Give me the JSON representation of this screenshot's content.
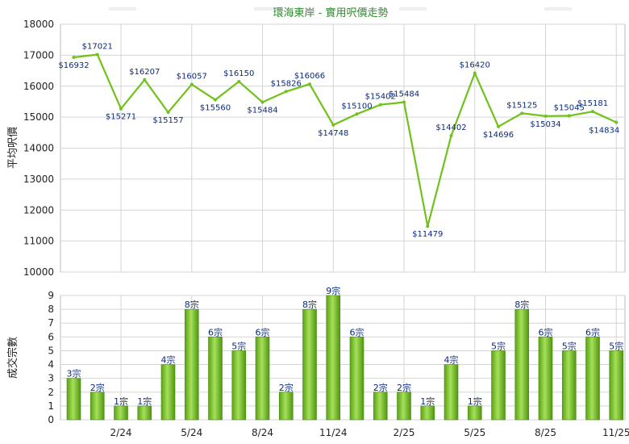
{
  "chart_data": [
    {
      "type": "line",
      "title": "環海東岸 - 實用呎價走勢",
      "ylabel": "平均呎價",
      "ylim": [
        10000,
        18000
      ],
      "yticks": [
        10000,
        11000,
        12000,
        13000,
        14000,
        15000,
        16000,
        17000,
        18000
      ],
      "grid": true,
      "series": [
        {
          "color": "#6fc21a",
          "values": [
            16932,
            17021,
            15271,
            16207,
            15157,
            16057,
            15560,
            16150,
            15484,
            15826,
            16066,
            14748,
            15100,
            15402,
            15484,
            11479,
            14402,
            16420,
            14696,
            15125,
            15034,
            15045,
            15181,
            14834
          ],
          "labels": [
            "$16932",
            "$17021",
            "$15271",
            "$16207",
            "$15157",
            "$16057",
            "$15560",
            "$16150",
            "$15484",
            "$15826",
            "$16066",
            "$14748",
            "$15100",
            "$15402",
            "$15484",
            "$11479",
            "$14402",
            "$16420",
            "$14696",
            "$15125",
            "$15034",
            "$15045",
            "$15181",
            "$14834"
          ]
        }
      ]
    },
    {
      "type": "bar",
      "ylabel": "成交宗數",
      "ylim": [
        0,
        9
      ],
      "yticks": [
        0,
        1,
        2,
        3,
        4,
        5,
        6,
        7,
        8,
        9
      ],
      "x_tick_labels": [
        "2/24",
        "5/24",
        "8/24",
        "11/24",
        "2/25",
        "5/25",
        "8/25",
        "11/25"
      ],
      "grid": true,
      "bar_color": "#7cc428",
      "values": [
        3,
        2,
        1,
        1,
        4,
        8,
        6,
        5,
        6,
        2,
        8,
        9,
        6,
        2,
        2,
        1,
        4,
        1,
        5,
        8,
        6,
        5,
        6,
        5
      ],
      "labels": [
        "3宗",
        "2宗",
        "1宗",
        "1宗",
        "4宗",
        "8宗",
        "6宗",
        "5宗",
        "6宗",
        "2宗",
        "8宗",
        "9宗",
        "6宗",
        "2宗",
        "2宗",
        "1宗",
        "4宗",
        "1宗",
        "5宗",
        "8宗",
        "6宗",
        "5宗",
        "6宗",
        "5宗"
      ]
    }
  ]
}
